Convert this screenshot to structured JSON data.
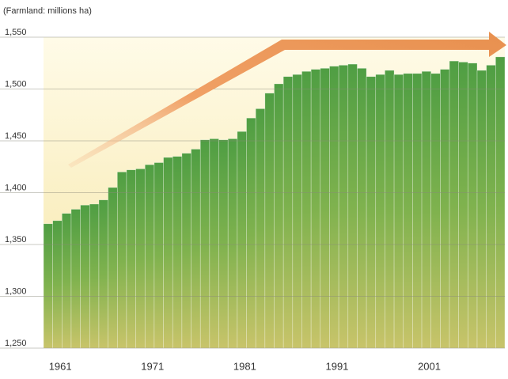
{
  "chart_data": {
    "type": "bar",
    "y_label": "(Farmland: millions ha)",
    "categories": [
      null,
      null,
      "1961",
      null,
      null,
      null,
      null,
      null,
      null,
      null,
      null,
      null,
      "1971",
      null,
      null,
      null,
      null,
      null,
      null,
      null,
      null,
      null,
      "1981",
      null,
      null,
      null,
      null,
      null,
      null,
      null,
      null,
      null,
      "1991",
      null,
      null,
      null,
      null,
      null,
      null,
      null,
      null,
      null,
      "2001",
      null,
      null,
      null,
      null,
      null,
      null,
      null
    ],
    "values": [
      1370,
      1373,
      1380,
      1384,
      1388,
      1389,
      1393,
      1405,
      1420,
      1422,
      1423,
      1427,
      1429,
      1434,
      1435,
      1438,
      1442,
      1451,
      1452,
      1451,
      1452,
      1459,
      1472,
      1481,
      1496,
      1505,
      1512,
      1514,
      1517,
      1519,
      1520,
      1522,
      1523,
      1524,
      1520,
      1512,
      1514,
      1518,
      1514,
      1515,
      1515,
      1517,
      1515,
      1519,
      1527,
      1526,
      1525,
      1518,
      1523,
      1531
    ],
    "color": "#5fa845",
    "ylim": [
      1250,
      1550
    ],
    "yticks": [
      {
        "value": 1250,
        "label": "1,250"
      },
      {
        "value": 1300,
        "label": "1,300"
      },
      {
        "value": 1350,
        "label": "1,350"
      },
      {
        "value": 1400,
        "label": "1,400"
      },
      {
        "value": 1450,
        "label": "1,450"
      },
      {
        "value": 1500,
        "label": "1,500"
      },
      {
        "value": 1550,
        "label": "1,550"
      }
    ],
    "grid": true
  }
}
